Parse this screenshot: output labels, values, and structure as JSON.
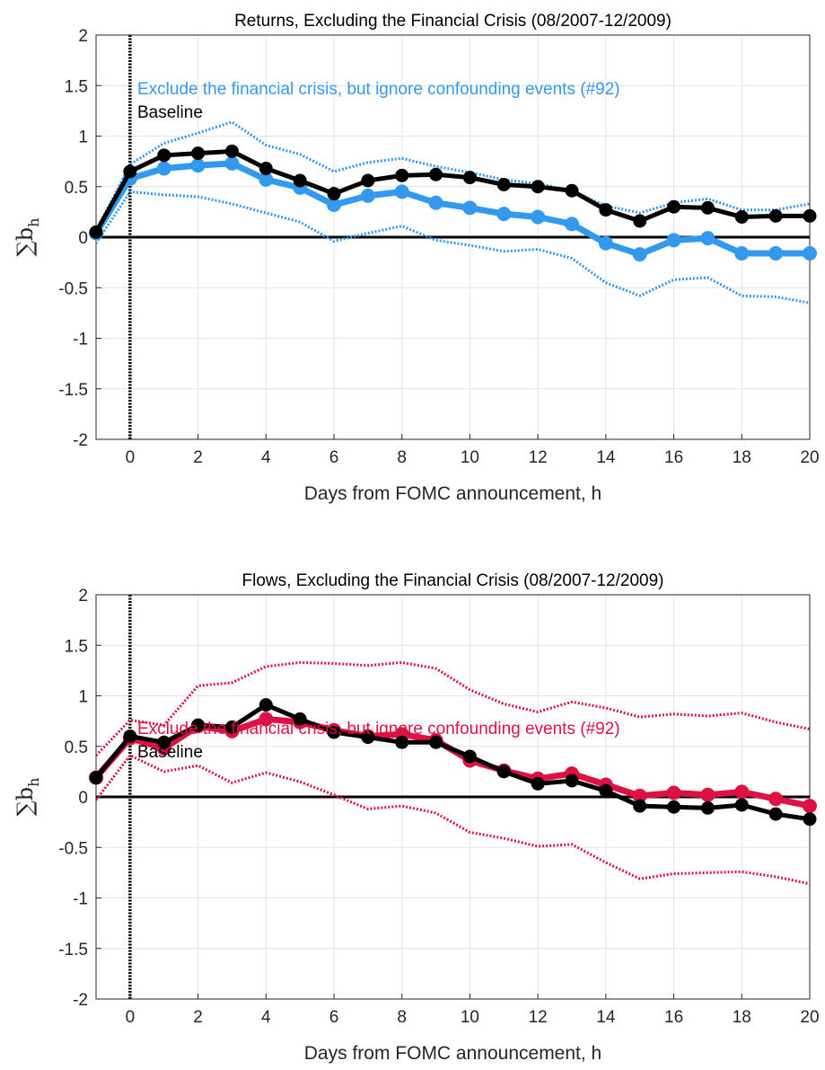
{
  "chart_data": [
    {
      "type": "line",
      "title": "Returns, Excluding the Financial Crisis (08/2007-12/2009)",
      "xlabel": "Days from FOMC announcement, h",
      "ylabel": "∑b",
      "ylabel_sub": "h",
      "xlim": [
        -1,
        20
      ],
      "ylim": [
        -2,
        2
      ],
      "xticks": [
        "0",
        "2",
        "4",
        "6",
        "8",
        "10",
        "12",
        "14",
        "16",
        "18",
        "20"
      ],
      "yticks": [
        "-2",
        "-1.5",
        "-1",
        "-0.5",
        "0",
        "0.5",
        "1",
        "1.5",
        "2"
      ],
      "grid": true,
      "legend_position": "top-left",
      "x": [
        -1,
        0,
        1,
        2,
        3,
        4,
        5,
        6,
        7,
        8,
        9,
        10,
        11,
        12,
        13,
        14,
        15,
        16,
        17,
        18,
        19,
        20
      ],
      "series": [
        {
          "name": "Exclude the financial crisis, but ignore confounding events (#92)",
          "color": "#3399ee",
          "values": [
            0.04,
            0.58,
            0.68,
            0.71,
            0.73,
            0.57,
            0.49,
            0.32,
            0.41,
            0.45,
            0.34,
            0.29,
            0.23,
            0.2,
            0.13,
            -0.06,
            -0.17,
            -0.03,
            -0.01,
            -0.16,
            -0.16,
            -0.16
          ],
          "upper": [
            0.06,
            0.72,
            0.93,
            1.03,
            1.14,
            0.91,
            0.82,
            0.65,
            0.74,
            0.78,
            0.7,
            0.64,
            0.57,
            0.53,
            0.46,
            0.31,
            0.24,
            0.34,
            0.38,
            0.27,
            0.27,
            0.33
          ],
          "lower": [
            -0.06,
            0.45,
            0.42,
            0.4,
            0.33,
            0.24,
            0.15,
            -0.04,
            0.04,
            0.11,
            -0.03,
            -0.08,
            -0.14,
            -0.12,
            -0.21,
            -0.45,
            -0.58,
            -0.42,
            -0.4,
            -0.58,
            -0.59,
            -0.65
          ]
        },
        {
          "name": "Baseline",
          "color": "#000000",
          "values": [
            0.05,
            0.65,
            0.81,
            0.83,
            0.85,
            0.68,
            0.56,
            0.43,
            0.56,
            0.61,
            0.62,
            0.59,
            0.52,
            0.5,
            0.46,
            0.27,
            0.16,
            0.3,
            0.29,
            0.2,
            0.21,
            0.21
          ]
        }
      ]
    },
    {
      "type": "line",
      "title": "Flows, Excluding the Financial Crisis (08/2007-12/2009)",
      "xlabel": "Days from FOMC announcement, h",
      "ylabel": "∑b",
      "ylabel_sub": "h",
      "xlim": [
        -1,
        20
      ],
      "ylim": [
        -2,
        2
      ],
      "xticks": [
        "0",
        "2",
        "4",
        "6",
        "8",
        "10",
        "12",
        "14",
        "16",
        "18",
        "20"
      ],
      "yticks": [
        "-2",
        "-1.5",
        "-1",
        "-0.5",
        "0",
        "0.5",
        "1",
        "1.5",
        "2"
      ],
      "grid": true,
      "legend_position": "bottom-left",
      "x": [
        -1,
        0,
        1,
        2,
        3,
        4,
        5,
        6,
        7,
        8,
        9,
        10,
        11,
        12,
        13,
        14,
        15,
        16,
        17,
        18,
        19,
        20
      ],
      "series": [
        {
          "name": "Exclude the financial crisis, but ignore confounding events (#92)",
          "color": "#dd1144",
          "values": [
            0.19,
            0.58,
            0.48,
            0.7,
            0.65,
            0.77,
            0.74,
            0.66,
            0.6,
            0.62,
            0.56,
            0.36,
            0.26,
            0.18,
            0.23,
            0.12,
            0.01,
            0.04,
            0.02,
            0.05,
            -0.02,
            -0.09
          ],
          "upper": [
            0.41,
            0.76,
            0.71,
            1.1,
            1.13,
            1.29,
            1.33,
            1.32,
            1.3,
            1.33,
            1.27,
            1.06,
            0.92,
            0.84,
            0.94,
            0.88,
            0.79,
            0.82,
            0.8,
            0.83,
            0.74,
            0.67
          ],
          "lower": [
            -0.03,
            0.41,
            0.25,
            0.31,
            0.14,
            0.24,
            0.15,
            0.02,
            -0.12,
            -0.09,
            -0.16,
            -0.35,
            -0.41,
            -0.49,
            -0.47,
            -0.65,
            -0.81,
            -0.76,
            -0.75,
            -0.74,
            -0.79,
            -0.86
          ]
        },
        {
          "name": "Baseline",
          "color": "#000000",
          "values": [
            0.19,
            0.6,
            0.54,
            0.71,
            0.69,
            0.91,
            0.77,
            0.64,
            0.59,
            0.54,
            0.54,
            0.4,
            0.25,
            0.13,
            0.16,
            0.06,
            -0.09,
            -0.1,
            -0.11,
            -0.08,
            -0.17,
            -0.22
          ]
        }
      ]
    }
  ]
}
